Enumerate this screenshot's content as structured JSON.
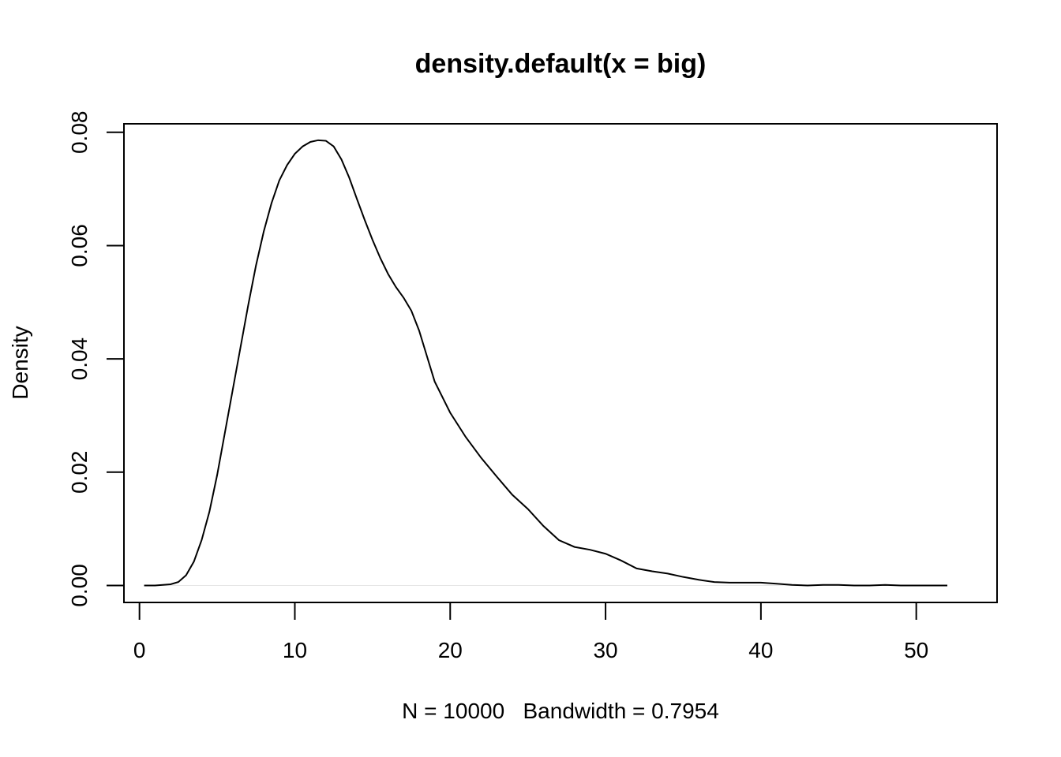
{
  "chart_data": {
    "type": "line",
    "title": "density.default(x = big)",
    "xlabel": "N = 10000   Bandwidth = 0.7954",
    "ylabel": "Density",
    "xlim": [
      -1,
      55.2
    ],
    "ylim": [
      -0.003,
      0.0815
    ],
    "x_ticks": [
      0,
      10,
      20,
      30,
      40,
      50
    ],
    "y_ticks": [
      0.0,
      0.02,
      0.04,
      0.06,
      0.08
    ],
    "x_tick_labels": [
      "0",
      "10",
      "20",
      "30",
      "40",
      "50"
    ],
    "y_tick_labels": [
      "0.00",
      "0.02",
      "0.04",
      "0.06",
      "0.08"
    ],
    "grid": false,
    "legend": "none",
    "line_color": "#000000",
    "series": [
      {
        "x": [
          0.3,
          1.0,
          2.0,
          2.5,
          3.0,
          3.5,
          4.0,
          4.5,
          5.0,
          5.5,
          6.0,
          6.5,
          7.0,
          7.5,
          8.0,
          8.5,
          9.0,
          9.5,
          10.0,
          10.5,
          11.0,
          11.5,
          12.0,
          12.5,
          13.0,
          13.5,
          14.0,
          14.5,
          15.0,
          15.5,
          16.0,
          16.5,
          17.0,
          17.5,
          18.0,
          18.5,
          19.0,
          20.0,
          21.0,
          22.0,
          23.0,
          24.0,
          25.0,
          26.0,
          27.0,
          28.0,
          29.0,
          30.0,
          31.0,
          32.0,
          33.0,
          34.0,
          35.0,
          36.0,
          37.0,
          38.0,
          39.0,
          40.0,
          41.0,
          42.0,
          43.0,
          44.0,
          45.0,
          46.0,
          47.0,
          48.0,
          49.0,
          50.0,
          51.0,
          52.0
        ],
        "y": [
          0.0,
          0.0,
          0.0002,
          0.0006,
          0.0018,
          0.0042,
          0.008,
          0.013,
          0.0195,
          0.027,
          0.0345,
          0.042,
          0.0495,
          0.0565,
          0.0625,
          0.0675,
          0.0715,
          0.0742,
          0.0762,
          0.0775,
          0.0783,
          0.0786,
          0.0785,
          0.0775,
          0.0752,
          0.072,
          0.0682,
          0.0645,
          0.061,
          0.0578,
          0.055,
          0.0527,
          0.0508,
          0.0485,
          0.045,
          0.0405,
          0.036,
          0.0305,
          0.0262,
          0.0225,
          0.0192,
          0.016,
          0.0135,
          0.0105,
          0.008,
          0.0068,
          0.0063,
          0.0056,
          0.0044,
          0.003,
          0.0025,
          0.0021,
          0.0015,
          0.001,
          0.0006,
          0.0005,
          0.0005,
          0.0005,
          0.0003,
          0.0001,
          0.0,
          0.0001,
          0.0001,
          0.0,
          0.0,
          0.0001,
          0.0,
          0.0,
          0.0,
          0.0
        ]
      }
    ]
  }
}
